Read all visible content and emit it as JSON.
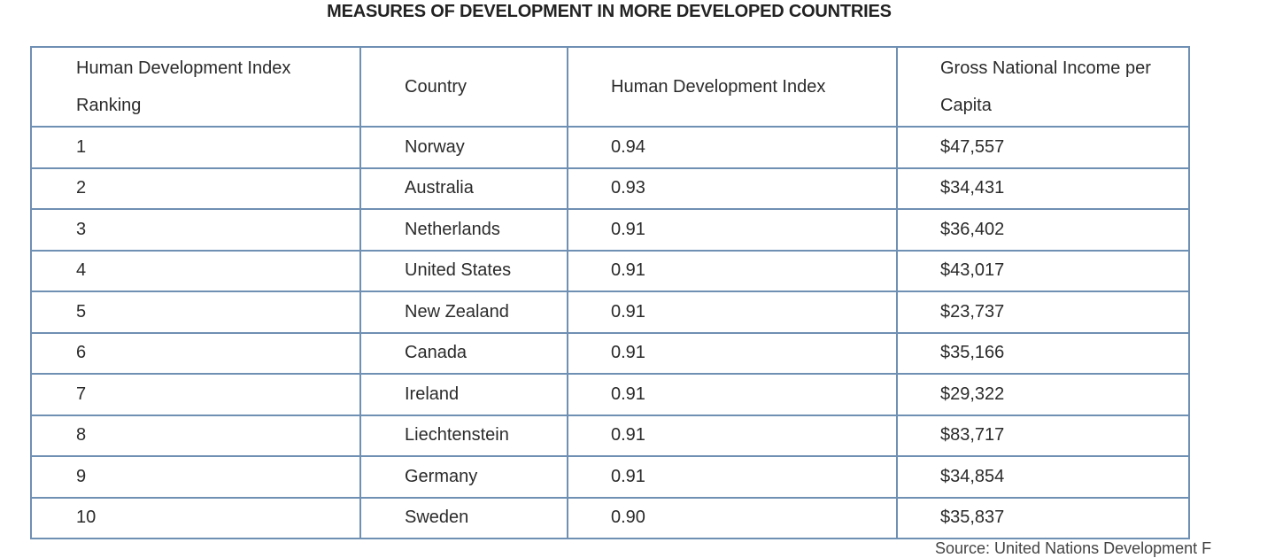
{
  "title": "MEASURES OF DEVELOPMENT IN MORE DEVELOPED COUNTRIES",
  "table": {
    "headers": [
      "Human Development Index Ranking",
      "Country",
      "Human Development Index",
      "Gross National Income per Capita"
    ],
    "rows": [
      {
        "rank": "1",
        "country": "Norway",
        "hdi": "0.94",
        "gni": "$47,557"
      },
      {
        "rank": "2",
        "country": "Australia",
        "hdi": "0.93",
        "gni": "$34,431"
      },
      {
        "rank": "3",
        "country": "Netherlands",
        "hdi": "0.91",
        "gni": "$36,402"
      },
      {
        "rank": "4",
        "country": "United States",
        "hdi": "0.91",
        "gni": "$43,017"
      },
      {
        "rank": "5",
        "country": "New Zealand",
        "hdi": "0.91",
        "gni": "$23,737"
      },
      {
        "rank": "6",
        "country": "Canada",
        "hdi": "0.91",
        "gni": "$35,166"
      },
      {
        "rank": "7",
        "country": "Ireland",
        "hdi": "0.91",
        "gni": "$29,322"
      },
      {
        "rank": "8",
        "country": "Liechtenstein",
        "hdi": "0.91",
        "gni": "$83,717"
      },
      {
        "rank": "9",
        "country": "Germany",
        "hdi": "0.91",
        "gni": "$34,854"
      },
      {
        "rank": "10",
        "country": "Sweden",
        "hdi": "0.90",
        "gni": "$35,837"
      }
    ]
  },
  "source": "Source: United Nations Development F"
}
